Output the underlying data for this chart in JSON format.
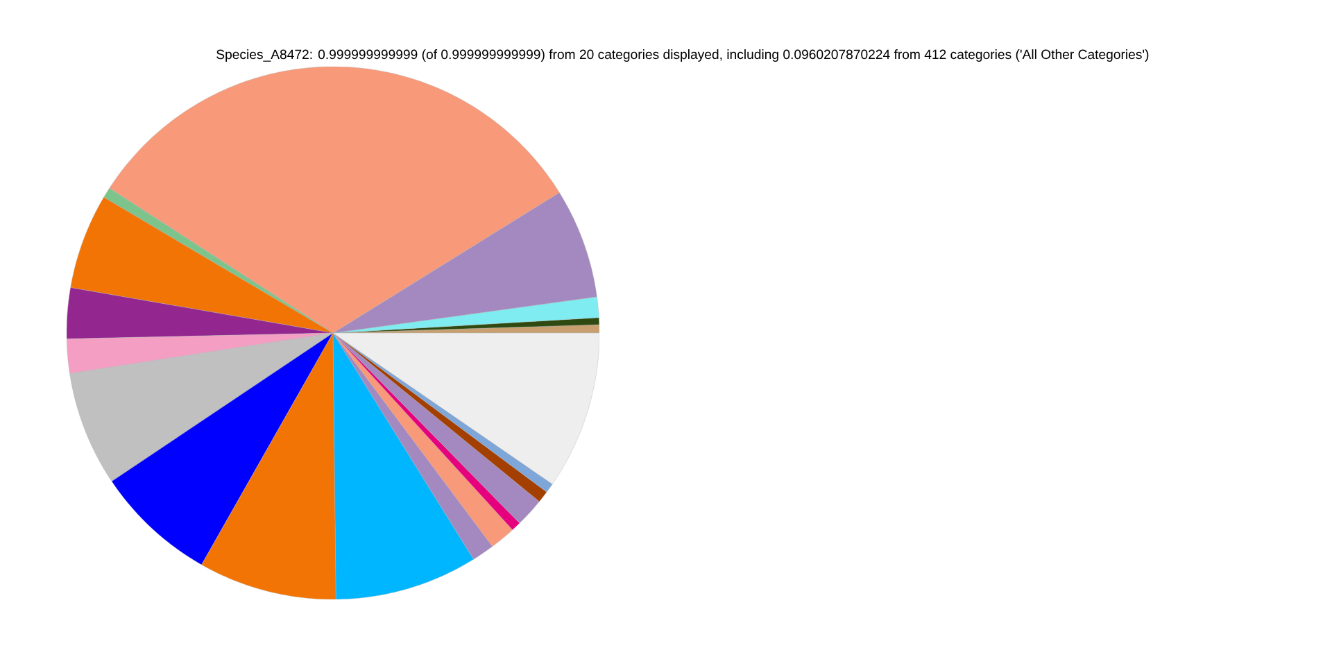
{
  "chart_data": {
    "type": "pie",
    "title": "Species_A8472: 0.999999999999 (of 0.999999999999) from 20 categories displayed, including 0.0960207870224 from 412 categories ('All Other Categories')",
    "categories": [
      null,
      null,
      null,
      null,
      null,
      null,
      null,
      null,
      null,
      null,
      null,
      null,
      null,
      null,
      null,
      null,
      null,
      null,
      null,
      null
    ],
    "values": [
      0.5,
      0.42,
      1.25,
      6.67,
      32.01,
      0.64,
      5.78,
      3.08,
      2.08,
      6.97,
      7.39,
      8.39,
      8.67,
      1.36,
      1.56,
      0.58,
      1.75,
      0.72,
      0.58,
      9.6
    ],
    "colors": [
      "#c8a070",
      "#2e4a10",
      "#7eecf0",
      "#a389c0",
      "#f8997a",
      "#7dc48c",
      "#f27405",
      "#93268f",
      "#f49ec4",
      "#c0c0c0",
      "#0000ff",
      "#f27405",
      "#00b6ff",
      "#a389c0",
      "#f8997a",
      "#e6007e",
      "#a389c0",
      "#a33f00",
      "#7ea6d8",
      "#eeeeee"
    ]
  }
}
